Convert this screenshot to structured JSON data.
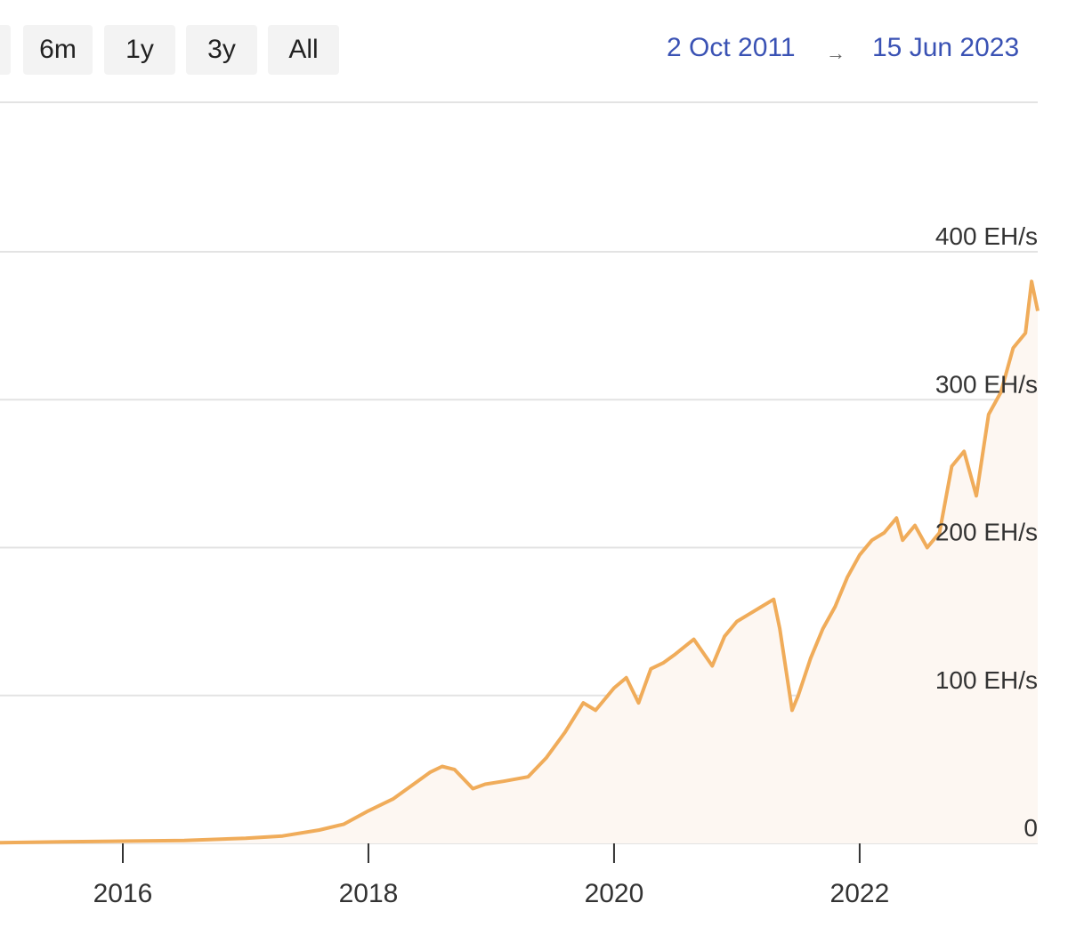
{
  "range_buttons": [
    {
      "label": ""
    },
    {
      "label": "6m"
    },
    {
      "label": "1y"
    },
    {
      "label": "3y"
    },
    {
      "label": "All"
    }
  ],
  "date_range": {
    "start": "2 Oct 2011",
    "arrow": "→",
    "end": "15 Jun 2023"
  },
  "colors": {
    "line": "#f0ac5a",
    "fill": "#fdf7f2",
    "grid": "#e3e3e3",
    "link": "#3a52b4"
  },
  "chart_data": {
    "type": "area",
    "title": "",
    "xlabel": "",
    "ylabel": "",
    "unit": "EH/s",
    "xlim": [
      2015.0,
      2023.45
    ],
    "ylim": [
      0,
      400
    ],
    "grid": true,
    "y_ticks": [
      {
        "value": 0,
        "label": "0"
      },
      {
        "value": 100,
        "label": "100 EH/s"
      },
      {
        "value": 200,
        "label": "200 EH/s"
      },
      {
        "value": 300,
        "label": "300 EH/s"
      },
      {
        "value": 400,
        "label": "400 EH/s"
      }
    ],
    "x_ticks": [
      {
        "value": 2016,
        "label": "2016"
      },
      {
        "value": 2018,
        "label": "2018"
      },
      {
        "value": 2020,
        "label": "2020"
      },
      {
        "value": 2022,
        "label": "2022"
      }
    ],
    "series": [
      {
        "name": "",
        "x": [
          2015.0,
          2015.5,
          2016.0,
          2016.5,
          2017.0,
          2017.3,
          2017.6,
          2017.8,
          2018.0,
          2018.2,
          2018.4,
          2018.5,
          2018.6,
          2018.7,
          2018.85,
          2018.95,
          2019.1,
          2019.3,
          2019.45,
          2019.6,
          2019.75,
          2019.85,
          2020.0,
          2020.1,
          2020.2,
          2020.3,
          2020.4,
          2020.5,
          2020.65,
          2020.8,
          2020.9,
          2021.0,
          2021.1,
          2021.2,
          2021.3,
          2021.35,
          2021.45,
          2021.5,
          2021.6,
          2021.7,
          2021.8,
          2021.9,
          2022.0,
          2022.1,
          2022.2,
          2022.3,
          2022.35,
          2022.45,
          2022.55,
          2022.65,
          2022.75,
          2022.85,
          2022.95,
          2023.05,
          2023.15,
          2023.25,
          2023.35,
          2023.4,
          2023.45
        ],
        "values": [
          0.5,
          1,
          1.5,
          2,
          3.5,
          5,
          9,
          13,
          22,
          30,
          42,
          48,
          52,
          50,
          37,
          40,
          42,
          45,
          58,
          75,
          95,
          90,
          105,
          112,
          95,
          118,
          122,
          128,
          138,
          120,
          140,
          150,
          155,
          160,
          165,
          145,
          90,
          100,
          125,
          145,
          160,
          180,
          195,
          205,
          210,
          220,
          205,
          215,
          200,
          210,
          255,
          265,
          235,
          290,
          305,
          335,
          345,
          380,
          360
        ]
      }
    ]
  }
}
